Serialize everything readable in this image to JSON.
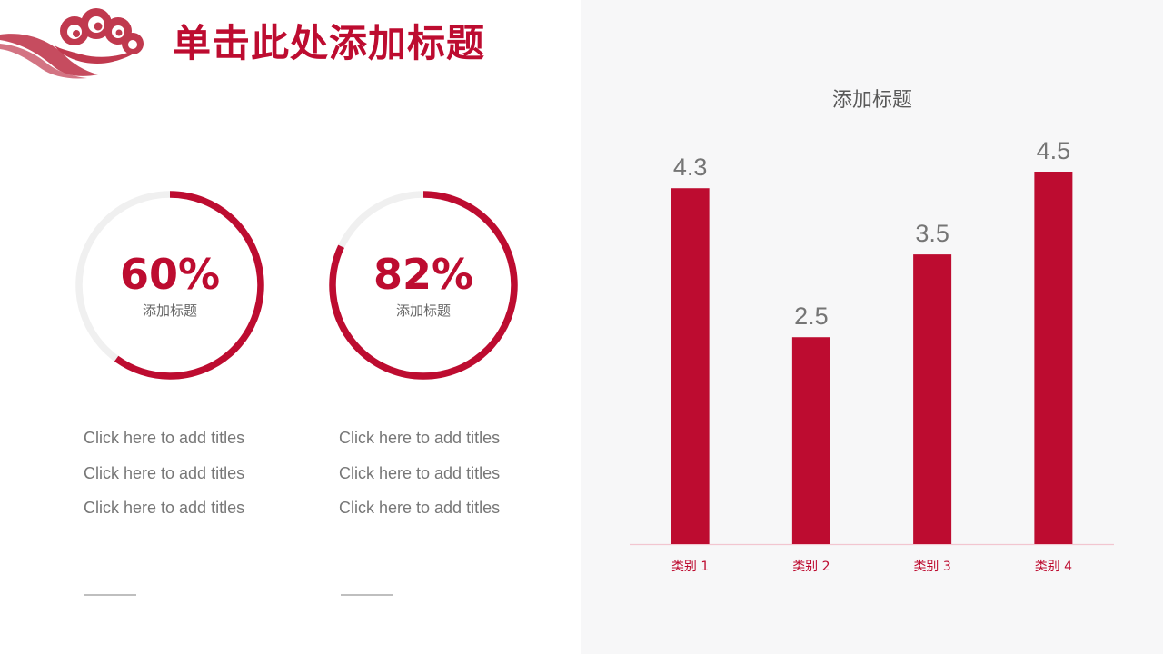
{
  "header": {
    "title": "单击此处添加标题"
  },
  "rings": [
    {
      "value": "60%",
      "fraction": 0.6,
      "label": "添加标题"
    },
    {
      "value": "82%",
      "fraction": 0.82,
      "label": "添加标题"
    }
  ],
  "text_columns": [
    {
      "lines": [
        "Click here to add titles",
        "Click here to add titles",
        "Click here to add titles"
      ]
    },
    {
      "lines": [
        "Click here to add titles",
        "Click here to add titles",
        "Click here to add titles"
      ]
    }
  ],
  "colors": {
    "accent": "#bd0c30",
    "ring_track": "#f0f0f0",
    "panel_bg": "#f7f7f8",
    "value_label": "#757575"
  },
  "icons": {
    "logo": "auspicious-cloud-icon"
  },
  "chart_data": {
    "type": "bar",
    "title": "添加标题",
    "categories": [
      "类别 1",
      "类别 2",
      "类别 3",
      "类别 4"
    ],
    "values": [
      4.3,
      2.5,
      3.5,
      4.5
    ],
    "data_labels": [
      "4.3",
      "2.5",
      "3.5",
      "4.5"
    ],
    "ylim": [
      0,
      4.5
    ],
    "grid": false,
    "legend": "none",
    "xlabel": "",
    "ylabel": ""
  }
}
